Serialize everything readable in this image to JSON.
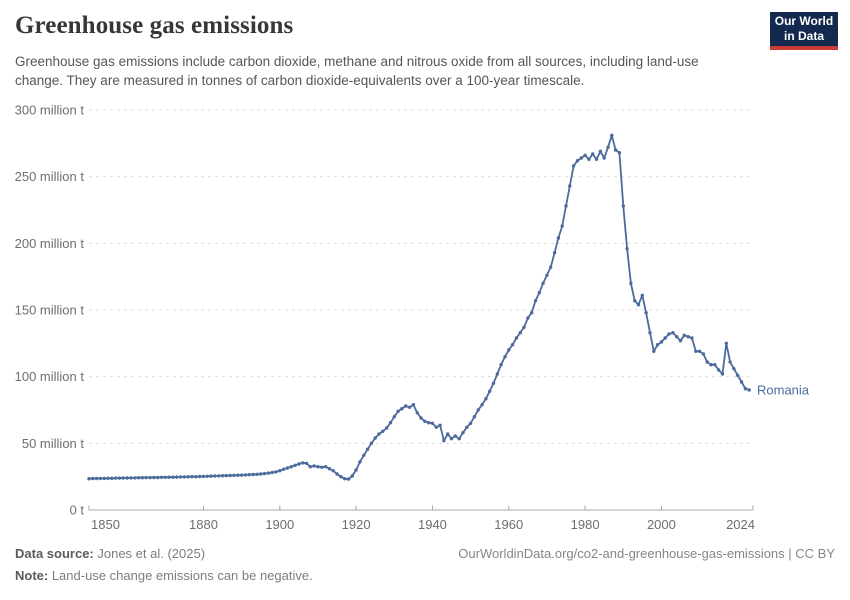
{
  "header": {
    "title": "Greenhouse gas emissions",
    "subtitle": "Greenhouse gas emissions include carbon dioxide, methane and nitrous oxide from all sources, including land-use change. They are measured in tonnes of carbon dioxide-equivalents over a 100-year timescale.",
    "logo": {
      "line1": "Our World",
      "line2": "in Data",
      "bg_color": "#13294e",
      "stripe_color": "#cc3b34"
    }
  },
  "chart_data": {
    "type": "line",
    "title": "Greenhouse gas emissions",
    "entity": "Romania",
    "unit": "million tonnes of CO2-equivalents",
    "line_color": "#4c6a9c",
    "grid": true,
    "xlim": [
      1850,
      2024
    ],
    "ylim": [
      0,
      300
    ],
    "x_ticks": [
      1850,
      1880,
      1900,
      1920,
      1940,
      1960,
      1980,
      2000,
      2024
    ],
    "y_ticks": [
      0,
      50,
      100,
      150,
      200,
      250,
      300
    ],
    "y_tick_labels": [
      "0 t",
      "50 million t",
      "100 million t",
      "150 million t",
      "200 million t",
      "250 million t",
      "300 million t"
    ],
    "x_start": 1850,
    "x_step": 1,
    "values": [
      23.5,
      23.6,
      23.6,
      23.7,
      23.7,
      23.8,
      23.8,
      23.9,
      23.9,
      24,
      24,
      24.1,
      24.1,
      24.2,
      24.2,
      24.3,
      24.3,
      24.4,
      24.4,
      24.5,
      24.5,
      24.6,
      24.6,
      24.7,
      24.8,
      24.8,
      24.9,
      25,
      25,
      25.1,
      25.2,
      25.3,
      25.4,
      25.5,
      25.6,
      25.7,
      25.8,
      25.9,
      26,
      26.1,
      26.2,
      26.3,
      26.5,
      26.6,
      26.8,
      27,
      27.3,
      27.7,
      28.1,
      28.6,
      29.5,
      30.5,
      31.5,
      32.5,
      33.5,
      34.5,
      35.3,
      35,
      32.5,
      33,
      32.5,
      32,
      32.5,
      31,
      29.5,
      27,
      25,
      23.5,
      23.2,
      25.5,
      30,
      36,
      41,
      45.5,
      50,
      54,
      57,
      59,
      61.5,
      65.5,
      70,
      74,
      76,
      78,
      77,
      79,
      73,
      69,
      66.5,
      65.5,
      65,
      62,
      63.5,
      52,
      57,
      53.5,
      55.5,
      53.5,
      58,
      62,
      65,
      70,
      75,
      79,
      83.5,
      89,
      95,
      102,
      109,
      115,
      120,
      124,
      129,
      133,
      137,
      144,
      148,
      157,
      163,
      170,
      176,
      182,
      193,
      204,
      213,
      228,
      243,
      258,
      262,
      264,
      266,
      263,
      267,
      263,
      269,
      264,
      272,
      281,
      270,
      268,
      228,
      196,
      170,
      157,
      154,
      161,
      148,
      133,
      119,
      124,
      126,
      129,
      132,
      133,
      130,
      127,
      131,
      130,
      129,
      119,
      119,
      117,
      111,
      109,
      109,
      105,
      102,
      125,
      111,
      106,
      101,
      96,
      91,
      90
    ]
  },
  "footer": {
    "datasource_label": "Data source:",
    "datasource_value": " Jones et al. (2025)",
    "note_label": "Note:",
    "note_value": " Land-use change emissions can be negative.",
    "link": "OurWorldinData.org/co2-and-greenhouse-gas-emissions | CC BY"
  }
}
